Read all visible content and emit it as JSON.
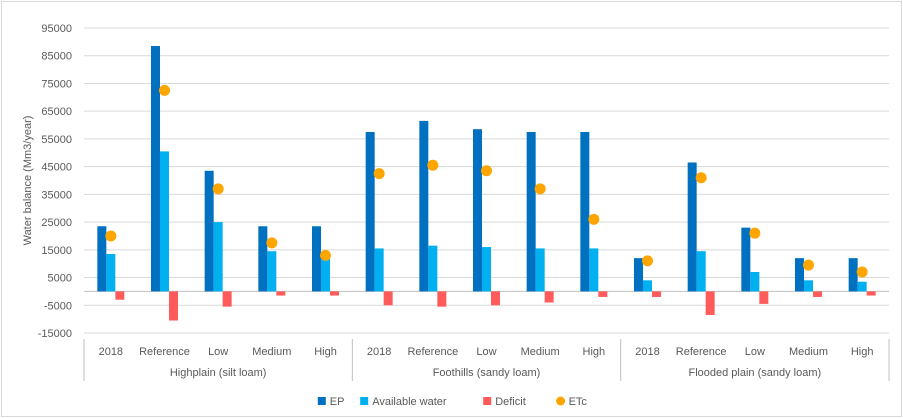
{
  "chart_data": {
    "type": "bar",
    "ylabel": "Water balance (Mm3/year)",
    "ylim": [
      -15000,
      95000
    ],
    "yticks": [
      -15000,
      -5000,
      5000,
      15000,
      25000,
      35000,
      45000,
      55000,
      65000,
      75000,
      85000,
      95000
    ],
    "grid": true,
    "legend_position": "bottom",
    "groups": [
      {
        "label": "Highplain (silt loam)",
        "categories": [
          "2018",
          "Reference",
          "Low",
          "Medium",
          "High"
        ]
      },
      {
        "label": "Foothills (sandy loam)",
        "categories": [
          "2018",
          "Reference",
          "Low",
          "Medium",
          "High"
        ]
      },
      {
        "label": "Flooded plain (sandy loam)",
        "categories": [
          "2018",
          "Reference",
          "Low",
          "Medium",
          "High"
        ]
      }
    ],
    "series": [
      {
        "name": "EP",
        "kind": "bar",
        "color": "#0070C0",
        "values": [
          23500,
          88500,
          43500,
          23500,
          23500,
          57500,
          61500,
          58500,
          57500,
          57500,
          12000,
          46500,
          23000,
          12000,
          12000
        ]
      },
      {
        "name": "Available water",
        "kind": "bar",
        "color": "#00B0F0",
        "values": [
          13500,
          50500,
          25000,
          14500,
          12000,
          15500,
          16500,
          16000,
          15500,
          15500,
          4000,
          14500,
          7000,
          4000,
          3500
        ]
      },
      {
        "name": "Deficit",
        "kind": "bar",
        "color": "#FF5B5B",
        "values": [
          -3000,
          -10500,
          -5500,
          -1500,
          -1500,
          -5000,
          -5500,
          -5000,
          -4000,
          -2000,
          -2000,
          -8500,
          -4500,
          -2000,
          -1500
        ]
      },
      {
        "name": "ETc",
        "kind": "marker",
        "color": "#FFA500",
        "values": [
          20000,
          72500,
          37000,
          17500,
          13000,
          42500,
          45500,
          43500,
          37000,
          26000,
          11000,
          41000,
          21000,
          9500,
          7000
        ]
      }
    ]
  }
}
